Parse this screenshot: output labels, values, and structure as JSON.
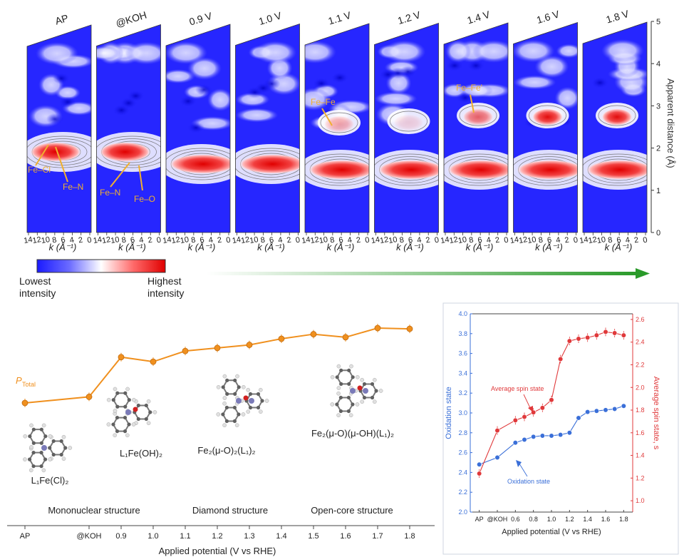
{
  "wavelet_panel": {
    "panel_labels": [
      "AP",
      "@KOH",
      "0.9 V",
      "1.0 V",
      "1.1 V",
      "1.2 V",
      "1.4 V",
      "1.6 V",
      "1.8 V"
    ],
    "k_ticks": [
      "14",
      "12",
      "10",
      "8",
      "6",
      "4",
      "2",
      "0"
    ],
    "k_label": "k (Å⁻¹)",
    "r_axis_label": "Apparent distance (Å)",
    "r_ticks": [
      "0",
      "1",
      "2",
      "3",
      "4",
      "5"
    ],
    "colorbar": {
      "low_label": [
        "Lowest",
        "intensity"
      ],
      "high_label": [
        "Highest",
        "intensity"
      ],
      "low_color": "#1a1aff",
      "mid_color": "#ffffff",
      "high_color": "#e00000"
    },
    "annotations": {
      "fe_cl": "Fe–Cl",
      "fe_n_ap": "Fe–N",
      "fe_n_koh": "Fe–N",
      "fe_o": "Fe–O",
      "fe_fe": "Fe–Fe",
      "fe_fe_prime": "Fe–Fe'"
    },
    "arrow_color": "#2a9a2a"
  },
  "chart_data": [
    {
      "type": "line",
      "series": [
        {
          "name": "P_Total",
          "values": [
            0.18,
            0.26,
            0.78,
            0.72,
            0.86,
            0.9,
            0.94,
            1.02,
            1.08,
            1.04,
            1.16,
            1.15
          ]
        }
      ],
      "categories": [
        "AP",
        "@KOH",
        "0.9",
        "1.0",
        "1.1",
        "1.2",
        "1.3",
        "1.4",
        "1.5",
        "1.6",
        "1.7",
        "1.8"
      ],
      "xlabel": "Applied potential (V vs RHE)",
      "series_label": "P",
      "series_label_sub": "Total",
      "color": "#f0901e",
      "structure_groups": [
        "Mononuclear structure",
        "Diamond structure",
        "Open-core structure"
      ],
      "molecule_labels": [
        "L₁Fe(Cl)₂",
        "L₁Fe(OH)₂",
        "Fe₂(μ-O)₂(L₁)₂",
        "Fe₂(μ-O)(μ-OH)(L₁)₂"
      ]
    },
    {
      "type": "line",
      "x_ticks": [
        "AP",
        "@KOH",
        "0.6",
        "0.8",
        "1.0",
        "1.2",
        "1.4",
        "1.6",
        "1.8"
      ],
      "xlabel": "Applied potential (V vs RHE)",
      "ylabel_left": "Oxidation state",
      "ylabel_right": "Average spin state, s",
      "ylim_left": [
        2.0,
        4.0
      ],
      "ylim_right": [
        0.9,
        2.65
      ],
      "yticks_left": [
        "2.0",
        "2.2",
        "2.4",
        "2.6",
        "2.8",
        "3.0",
        "3.2",
        "3.4",
        "3.6",
        "3.8",
        "4.0"
      ],
      "yticks_right": [
        "1.0",
        "1.2",
        "1.4",
        "1.6",
        "1.8",
        "2.0",
        "2.2",
        "2.4",
        "2.6"
      ],
      "x": [
        0.2,
        0.4,
        0.6,
        0.7,
        0.8,
        0.9,
        1.0,
        1.1,
        1.2,
        1.3,
        1.4,
        1.5,
        1.6,
        1.7,
        1.8
      ],
      "series": [
        {
          "name": "Oxidation state",
          "color": "#3a6fd8",
          "values": [
            2.48,
            2.55,
            2.7,
            2.73,
            2.76,
            2.77,
            2.77,
            2.78,
            2.8,
            2.95,
            3.01,
            3.02,
            3.03,
            3.04,
            3.07
          ]
        },
        {
          "name": "Average spin state",
          "color": "#e0393b",
          "values": [
            1.24,
            1.62,
            1.71,
            1.74,
            1.78,
            1.82,
            1.89,
            2.25,
            2.41,
            2.43,
            2.44,
            2.46,
            2.49,
            2.48,
            2.46
          ]
        }
      ]
    }
  ]
}
